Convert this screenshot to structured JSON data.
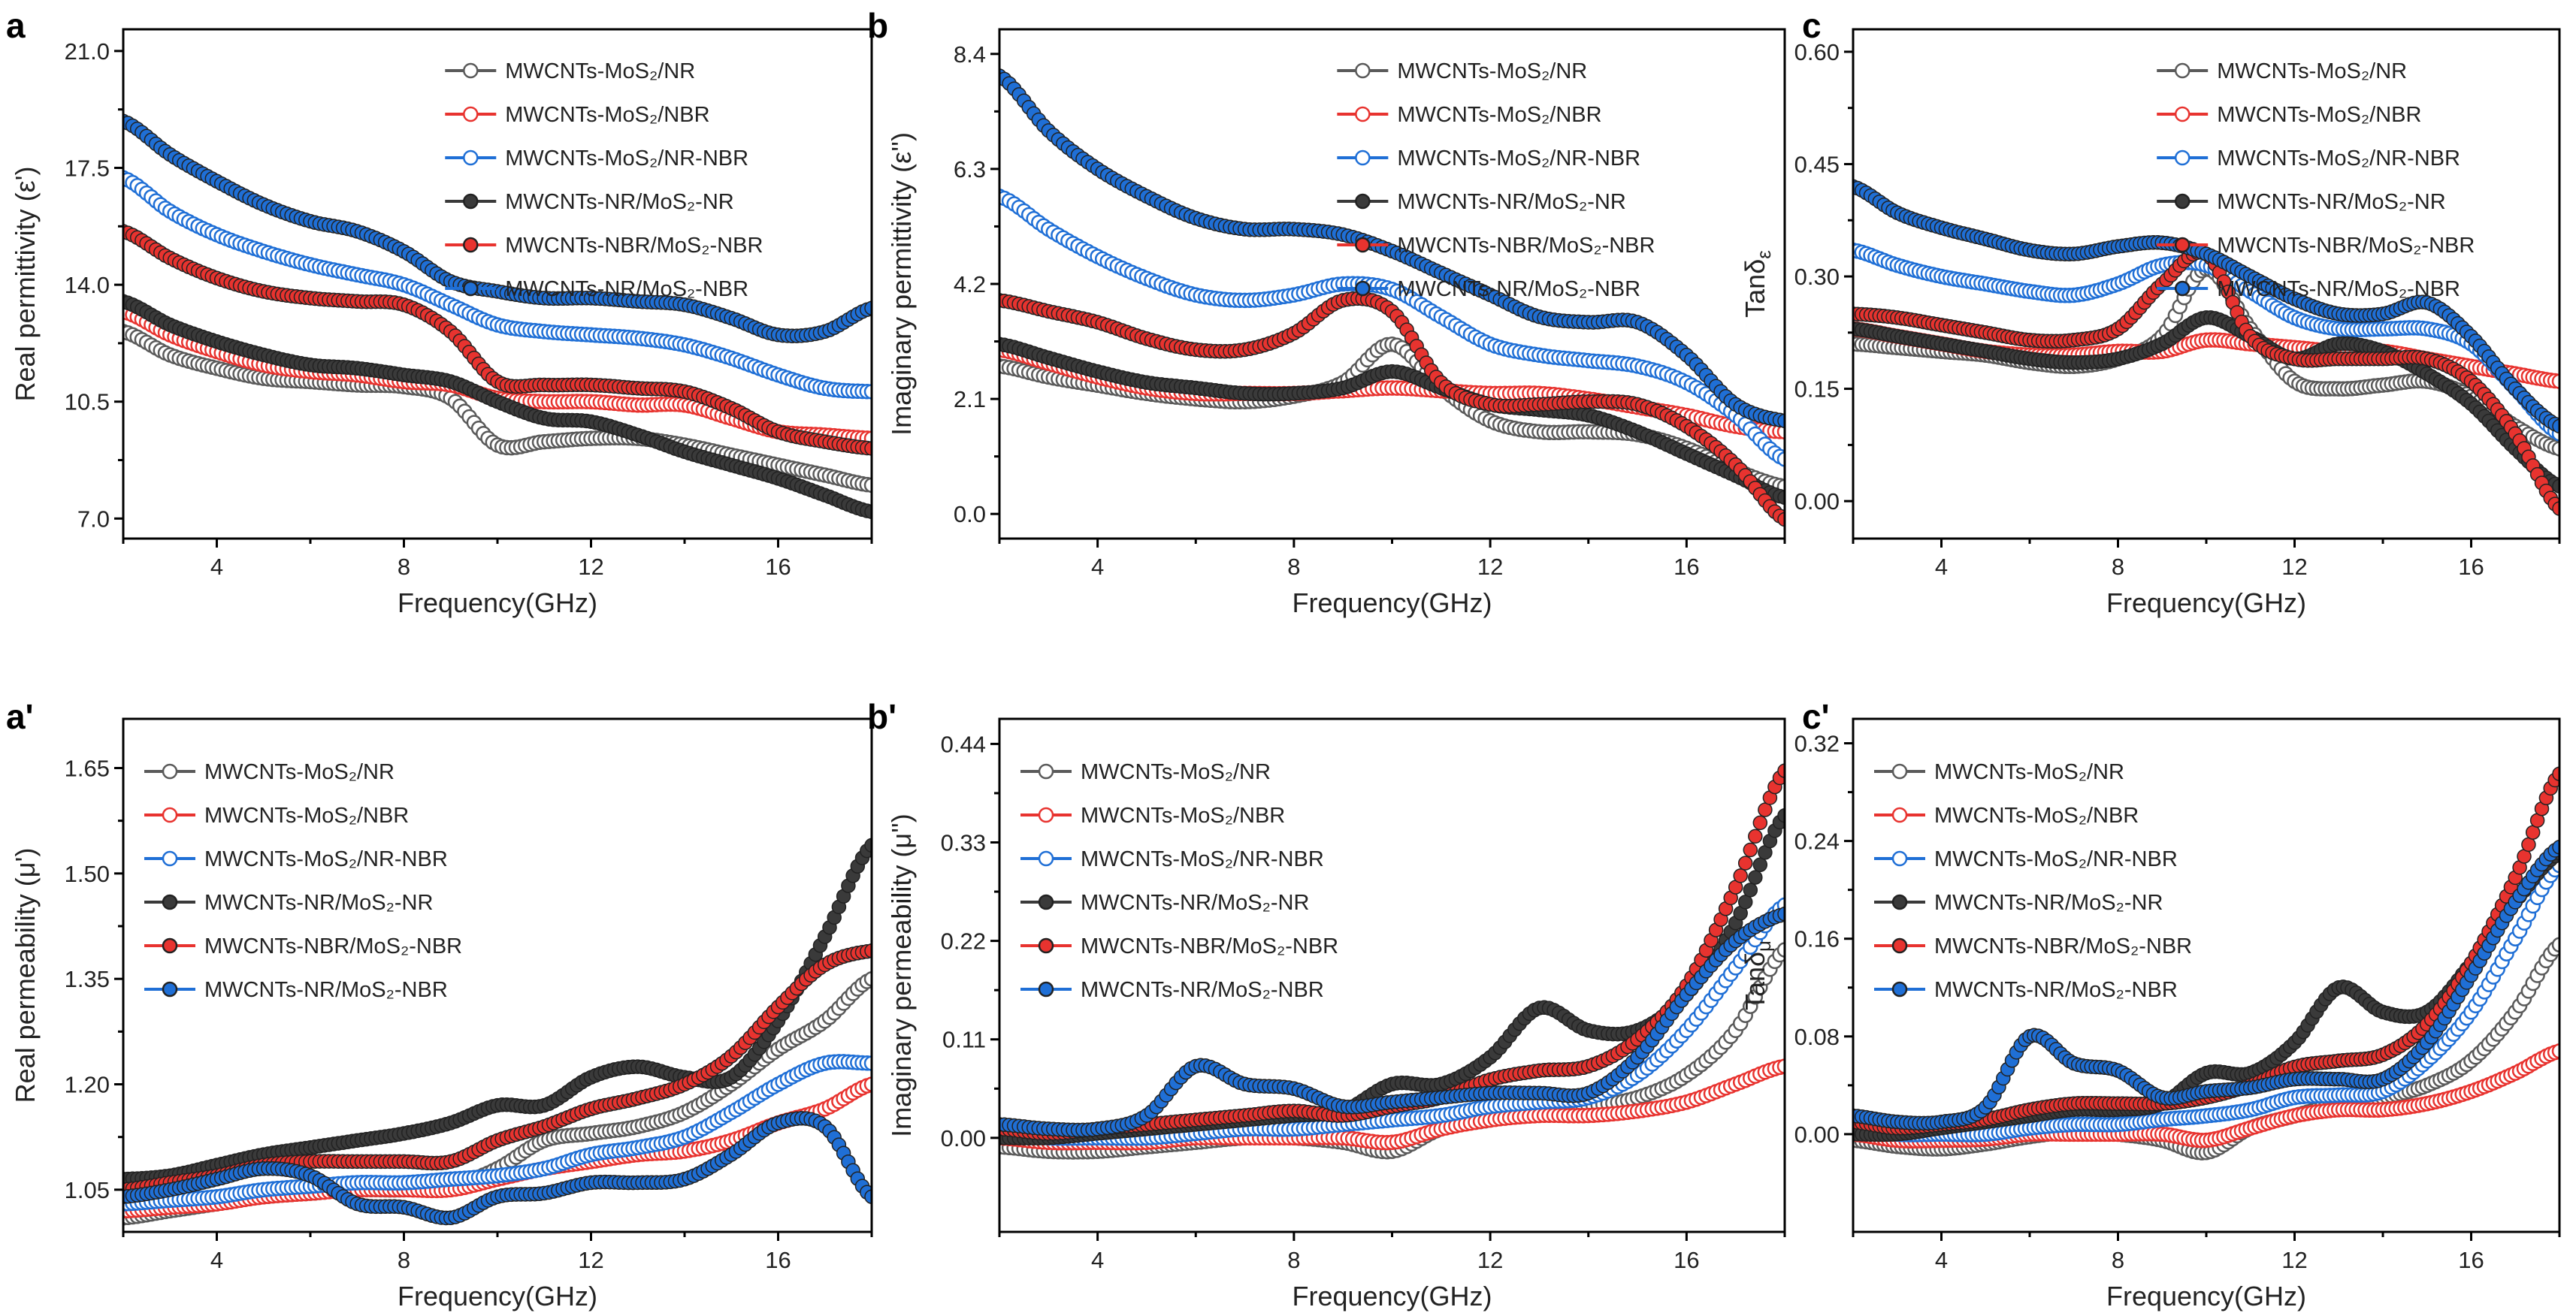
{
  "legend_entries": [
    {
      "label": "MWCNTs-MoS₂/NR",
      "color": "#5a5a5a",
      "filled": false
    },
    {
      "label": "MWCNTs-MoS₂/NBR",
      "color": "#e8332f",
      "filled": false
    },
    {
      "label": "MWCNTs-MoS₂/NR-NBR",
      "color": "#1f6fd6",
      "filled": false
    },
    {
      "label": "MWCNTs-NR/MoS₂-NR",
      "color": "#3a3a3a",
      "filled": true
    },
    {
      "label": "MWCNTs-NBR/MoS₂-NBR",
      "color": "#e8332f",
      "filled": true
    },
    {
      "label": "MWCNTs-NR/MoS₂-NBR",
      "color": "#1f6fd6",
      "filled": true
    }
  ],
  "chart_data": [
    {
      "panel": "a",
      "type": "scatter",
      "xlabel": "Frequency(GHz)",
      "ylabel": "Real permittivity (ε')",
      "ylabel_sub": "",
      "xlim": [
        2,
        18
      ],
      "ylim": [
        6.4,
        21.65
      ],
      "xticks": [
        4,
        8,
        12,
        16
      ],
      "yticks": [
        "7.0",
        "10.5",
        "14.0",
        "17.5",
        "21.0"
      ],
      "legend": "top-right",
      "grid": false,
      "x": [
        2,
        3,
        4,
        5,
        6,
        7,
        8,
        9,
        10,
        11,
        12,
        13,
        14,
        15,
        16,
        17,
        18
      ],
      "series": [
        {
          "name": "MWCNTs-MoS₂/NR",
          "values": [
            12.6,
            11.9,
            11.5,
            11.2,
            11.1,
            11.0,
            10.95,
            10.6,
            9.2,
            9.3,
            9.4,
            9.4,
            9.2,
            8.9,
            8.6,
            8.3,
            8.0
          ]
        },
        {
          "name": "MWCNTs-MoS₂/NBR",
          "values": [
            13.2,
            12.5,
            12.0,
            11.6,
            11.4,
            11.3,
            11.1,
            11.0,
            10.6,
            10.5,
            10.5,
            10.4,
            10.4,
            10.0,
            9.6,
            9.5,
            9.4
          ]
        },
        {
          "name": "MWCNTs-MoS₂/NR-NBR",
          "values": [
            17.2,
            16.2,
            15.5,
            15.0,
            14.6,
            14.3,
            14.0,
            13.4,
            12.8,
            12.6,
            12.5,
            12.4,
            12.2,
            11.8,
            11.3,
            10.9,
            10.8
          ]
        },
        {
          "name": "MWCNTs-NR/MoS₂-NR",
          "values": [
            13.5,
            12.8,
            12.3,
            11.9,
            11.6,
            11.5,
            11.3,
            11.1,
            10.5,
            10.0,
            9.9,
            9.5,
            9.0,
            8.6,
            8.2,
            7.7,
            7.2
          ]
        },
        {
          "name": "MWCNTs-NBR/MoS₂-NBR",
          "values": [
            15.6,
            14.8,
            14.2,
            13.8,
            13.6,
            13.5,
            13.4,
            12.6,
            11.1,
            11.0,
            11.0,
            10.9,
            10.8,
            10.3,
            9.6,
            9.3,
            9.1
          ]
        },
        {
          "name": "MWCNTs-NR/MoS₂-NBR",
          "values": [
            18.9,
            17.9,
            17.1,
            16.4,
            15.9,
            15.6,
            15.0,
            14.1,
            13.8,
            13.6,
            13.6,
            13.5,
            13.4,
            13.0,
            12.5,
            12.6,
            13.3
          ]
        }
      ]
    },
    {
      "panel": "b",
      "type": "scatter",
      "xlabel": "Frequency(GHz)",
      "ylabel": "Imaginary permittivity (ε'')",
      "ylabel_sub": "",
      "xlim": [
        2,
        18
      ],
      "ylim": [
        -0.45,
        8.85
      ],
      "xticks": [
        4,
        8,
        12,
        16
      ],
      "yticks": [
        "0.0",
        "2.1",
        "4.2",
        "6.3",
        "8.4"
      ],
      "legend": "top-right",
      "grid": false,
      "x": [
        2,
        3,
        4,
        5,
        6,
        7,
        8,
        9,
        10,
        11,
        12,
        13,
        14,
        15,
        16,
        17,
        18
      ],
      "series": [
        {
          "name": "MWCNTs-MoS₂/NR",
          "values": [
            2.7,
            2.5,
            2.35,
            2.2,
            2.1,
            2.05,
            2.15,
            2.4,
            3.1,
            2.3,
            1.7,
            1.5,
            1.5,
            1.45,
            1.2,
            0.8,
            0.5
          ]
        },
        {
          "name": "MWCNTs-MoS₂/NBR",
          "values": [
            3.0,
            2.75,
            2.5,
            2.3,
            2.2,
            2.2,
            2.2,
            2.25,
            2.3,
            2.25,
            2.2,
            2.2,
            2.1,
            1.95,
            1.8,
            1.6,
            1.5
          ]
        },
        {
          "name": "MWCNTs-MoS₂/NR-NBR",
          "values": [
            5.8,
            5.2,
            4.7,
            4.3,
            4.0,
            3.9,
            4.0,
            4.2,
            4.1,
            3.6,
            3.1,
            2.9,
            2.8,
            2.7,
            2.4,
            1.8,
            1.0
          ]
        },
        {
          "name": "MWCNTs-NR/MoS₂-NR",
          "values": [
            3.1,
            2.85,
            2.6,
            2.4,
            2.3,
            2.2,
            2.2,
            2.3,
            2.6,
            2.3,
            2.0,
            1.9,
            1.8,
            1.5,
            1.1,
            0.7,
            0.3
          ]
        },
        {
          "name": "MWCNTs-NBR/MoS₂-NBR",
          "values": [
            3.9,
            3.7,
            3.5,
            3.2,
            3.0,
            3.0,
            3.3,
            3.9,
            3.7,
            2.4,
            2.0,
            2.0,
            2.05,
            2.0,
            1.6,
            0.9,
            -0.1
          ]
        },
        {
          "name": "MWCNTs-NR/MoS₂-NBR",
          "values": [
            8.0,
            7.0,
            6.3,
            5.8,
            5.4,
            5.2,
            5.2,
            5.1,
            4.8,
            4.4,
            4.0,
            3.6,
            3.5,
            3.5,
            2.9,
            2.0,
            1.7
          ]
        }
      ]
    },
    {
      "panel": "c",
      "type": "scatter",
      "xlabel": "Frequency(GHz)",
      "ylabel": "Tanδ",
      "ylabel_sub": "ε",
      "xlim": [
        2,
        18
      ],
      "ylim": [
        -0.05,
        0.63
      ],
      "xticks": [
        4,
        8,
        12,
        16
      ],
      "yticks": [
        "0.00",
        "0.15",
        "0.30",
        "0.45",
        "0.60"
      ],
      "legend": "top-right",
      "grid": false,
      "x": [
        2,
        3,
        4,
        5,
        6,
        7,
        8,
        9,
        10,
        11,
        12,
        13,
        14,
        15,
        16,
        17,
        18
      ],
      "series": [
        {
          "name": "MWCNTs-MoS₂/NR",
          "values": [
            0.21,
            0.205,
            0.2,
            0.195,
            0.185,
            0.18,
            0.19,
            0.22,
            0.31,
            0.23,
            0.16,
            0.15,
            0.155,
            0.16,
            0.14,
            0.1,
            0.07
          ]
        },
        {
          "name": "MWCNTs-MoS₂/NBR",
          "values": [
            0.23,
            0.22,
            0.21,
            0.2,
            0.195,
            0.195,
            0.2,
            0.2,
            0.215,
            0.21,
            0.205,
            0.2,
            0.2,
            0.19,
            0.18,
            0.17,
            0.16
          ]
        },
        {
          "name": "MWCNTs-MoS₂/NR-NBR",
          "values": [
            0.335,
            0.315,
            0.3,
            0.29,
            0.28,
            0.275,
            0.29,
            0.315,
            0.315,
            0.28,
            0.245,
            0.23,
            0.23,
            0.23,
            0.21,
            0.15,
            0.09
          ]
        },
        {
          "name": "MWCNTs-NR/MoS₂-NR",
          "values": [
            0.23,
            0.22,
            0.21,
            0.2,
            0.19,
            0.185,
            0.19,
            0.21,
            0.245,
            0.22,
            0.19,
            0.21,
            0.2,
            0.17,
            0.13,
            0.07,
            0.02
          ]
        },
        {
          "name": "MWCNTs-NBR/MoS₂-NBR",
          "values": [
            0.25,
            0.245,
            0.235,
            0.225,
            0.215,
            0.215,
            0.23,
            0.29,
            0.33,
            0.22,
            0.19,
            0.19,
            0.19,
            0.19,
            0.16,
            0.09,
            -0.01
          ]
        },
        {
          "name": "MWCNTs-NR/MoS₂-NBR",
          "values": [
            0.42,
            0.385,
            0.365,
            0.35,
            0.335,
            0.33,
            0.34,
            0.345,
            0.33,
            0.3,
            0.27,
            0.25,
            0.25,
            0.265,
            0.22,
            0.15,
            0.1
          ]
        }
      ]
    },
    {
      "panel": "a'",
      "type": "scatter",
      "xlabel": "Frequency(GHz)",
      "ylabel": "Real permeability (μ')",
      "ylabel_sub": "",
      "xlim": [
        2,
        18
      ],
      "ylim": [
        0.99,
        1.72
      ],
      "xticks": [
        4,
        8,
        12,
        16
      ],
      "yticks": [
        "1.05",
        "1.20",
        "1.35",
        "1.50",
        "1.65"
      ],
      "legend": "top-left",
      "grid": false,
      "x": [
        2,
        3,
        4,
        5,
        6,
        7,
        8,
        9,
        10,
        11,
        12,
        13,
        14,
        15,
        16,
        17,
        18
      ],
      "series": [
        {
          "name": "MWCNTs-MoS₂/NR",
          "values": [
            1.01,
            1.02,
            1.03,
            1.04,
            1.045,
            1.05,
            1.05,
            1.055,
            1.08,
            1.12,
            1.13,
            1.14,
            1.16,
            1.2,
            1.25,
            1.29,
            1.35
          ]
        },
        {
          "name": "MWCNTs-MoS₂/NBR",
          "values": [
            1.02,
            1.025,
            1.03,
            1.04,
            1.045,
            1.05,
            1.05,
            1.05,
            1.065,
            1.08,
            1.09,
            1.1,
            1.105,
            1.12,
            1.145,
            1.165,
            1.2
          ]
        },
        {
          "name": "MWCNTs-MoS₂/NR-NBR",
          "values": [
            1.03,
            1.035,
            1.04,
            1.05,
            1.055,
            1.06,
            1.06,
            1.065,
            1.07,
            1.08,
            1.1,
            1.11,
            1.125,
            1.16,
            1.2,
            1.23,
            1.23
          ]
        },
        {
          "name": "MWCNTs-NR/MoS₂-NR",
          "values": [
            1.065,
            1.07,
            1.085,
            1.1,
            1.11,
            1.12,
            1.13,
            1.145,
            1.17,
            1.17,
            1.21,
            1.225,
            1.21,
            1.21,
            1.29,
            1.41,
            1.54
          ]
        },
        {
          "name": "MWCNTs-NBR/MoS₂-NBR",
          "values": [
            1.05,
            1.06,
            1.07,
            1.085,
            1.09,
            1.09,
            1.09,
            1.09,
            1.12,
            1.14,
            1.165,
            1.18,
            1.2,
            1.24,
            1.31,
            1.37,
            1.39
          ]
        },
        {
          "name": "MWCNTs-NR/MoS₂-NBR",
          "values": [
            1.04,
            1.05,
            1.065,
            1.08,
            1.07,
            1.03,
            1.025,
            1.01,
            1.04,
            1.045,
            1.06,
            1.06,
            1.065,
            1.1,
            1.145,
            1.14,
            1.04
          ]
        }
      ]
    },
    {
      "panel": "b'",
      "type": "scatter",
      "xlabel": "Frequency(GHz)",
      "ylabel": "Imaginary permeability (μ'')",
      "ylabel_sub": "",
      "xlim": [
        2,
        18
      ],
      "ylim": [
        -0.105,
        0.468
      ],
      "xticks": [
        4,
        8,
        12,
        16
      ],
      "yticks": [
        "0.00",
        "0.11",
        "0.22",
        "0.33",
        "0.44"
      ],
      "legend": "top-left",
      "grid": false,
      "x": [
        2,
        3,
        4,
        5,
        6,
        7,
        8,
        9,
        10,
        11,
        12,
        13,
        14,
        15,
        16,
        17,
        18
      ],
      "series": [
        {
          "name": "MWCNTs-MoS₂/NR",
          "values": [
            -0.01,
            -0.015,
            -0.015,
            -0.01,
            -0.005,
            0.0,
            0.0,
            -0.005,
            -0.015,
            0.01,
            0.02,
            0.03,
            0.035,
            0.045,
            0.07,
            0.12,
            0.21
          ]
        },
        {
          "name": "MWCNTs-MoS₂/NBR",
          "values": [
            0.0,
            -0.005,
            -0.005,
            -0.005,
            0.0,
            0.0,
            0.0,
            0.0,
            -0.005,
            0.01,
            0.02,
            0.025,
            0.025,
            0.03,
            0.04,
            0.06,
            0.08
          ]
        },
        {
          "name": "MWCNTs-MoS₂/NR-NBR",
          "values": [
            0.005,
            0.0,
            0.0,
            0.0,
            0.005,
            0.01,
            0.01,
            0.015,
            0.02,
            0.025,
            0.035,
            0.04,
            0.045,
            0.07,
            0.12,
            0.19,
            0.26
          ]
        },
        {
          "name": "MWCNTs-NR/MoS₂-NR",
          "values": [
            0.0,
            0.0,
            0.005,
            0.01,
            0.015,
            0.02,
            0.025,
            0.03,
            0.06,
            0.06,
            0.09,
            0.145,
            0.12,
            0.12,
            0.16,
            0.24,
            0.36
          ]
        },
        {
          "name": "MWCNTs-NBR/MoS₂-NBR",
          "values": [
            0.01,
            0.005,
            0.01,
            0.015,
            0.02,
            0.025,
            0.03,
            0.025,
            0.035,
            0.045,
            0.065,
            0.075,
            0.08,
            0.11,
            0.17,
            0.28,
            0.41
          ]
        },
        {
          "name": "MWCNTs-NR/MoS₂-NBR",
          "values": [
            0.015,
            0.01,
            0.01,
            0.025,
            0.08,
            0.06,
            0.055,
            0.035,
            0.04,
            0.045,
            0.05,
            0.05,
            0.05,
            0.09,
            0.16,
            0.22,
            0.25
          ]
        }
      ]
    },
    {
      "panel": "c'",
      "type": "scatter",
      "xlabel": "Frequency(GHz)",
      "ylabel": "Tanδ",
      "ylabel_sub": "μ",
      "xlim": [
        2,
        18
      ],
      "ylim": [
        -0.08,
        0.34
      ],
      "xticks": [
        4,
        8,
        12,
        16
      ],
      "yticks": [
        "0.00",
        "0.08",
        "0.16",
        "0.24",
        "0.32"
      ],
      "legend": "top-left",
      "grid": false,
      "x": [
        2,
        3,
        4,
        5,
        6,
        7,
        8,
        9,
        10,
        11,
        12,
        13,
        14,
        15,
        16,
        17,
        18
      ],
      "series": [
        {
          "name": "MWCNTs-MoS₂/NR",
          "values": [
            -0.005,
            -0.01,
            -0.012,
            -0.008,
            -0.002,
            0.002,
            0.0,
            -0.005,
            -0.015,
            0.005,
            0.015,
            0.025,
            0.03,
            0.04,
            0.06,
            0.1,
            0.155
          ]
        },
        {
          "name": "MWCNTs-MoS₂/NBR",
          "values": [
            0.0,
            -0.005,
            -0.005,
            -0.004,
            0.0,
            0.0,
            0.0,
            0.0,
            -0.005,
            0.005,
            0.015,
            0.02,
            0.02,
            0.025,
            0.035,
            0.05,
            0.068
          ]
        },
        {
          "name": "MWCNTs-MoS₂/NR-NBR",
          "values": [
            0.005,
            0.0,
            0.0,
            0.0,
            0.005,
            0.008,
            0.008,
            0.012,
            0.015,
            0.02,
            0.03,
            0.032,
            0.035,
            0.06,
            0.1,
            0.16,
            0.22
          ]
        },
        {
          "name": "MWCNTs-NR/MoS₂-NR",
          "values": [
            0.0,
            0.0,
            0.005,
            0.01,
            0.015,
            0.02,
            0.02,
            0.025,
            0.05,
            0.05,
            0.075,
            0.12,
            0.1,
            0.1,
            0.14,
            0.19,
            0.23
          ]
        },
        {
          "name": "MWCNTs-NBR/MoS₂-NBR",
          "values": [
            0.01,
            0.005,
            0.008,
            0.012,
            0.02,
            0.025,
            0.025,
            0.025,
            0.03,
            0.04,
            0.055,
            0.06,
            0.065,
            0.09,
            0.14,
            0.21,
            0.295
          ]
        },
        {
          "name": "MWCNTs-NR/MoS₂-NBR",
          "values": [
            0.015,
            0.01,
            0.01,
            0.022,
            0.08,
            0.058,
            0.052,
            0.03,
            0.035,
            0.038,
            0.045,
            0.045,
            0.045,
            0.075,
            0.13,
            0.19,
            0.235
          ]
        }
      ]
    }
  ]
}
